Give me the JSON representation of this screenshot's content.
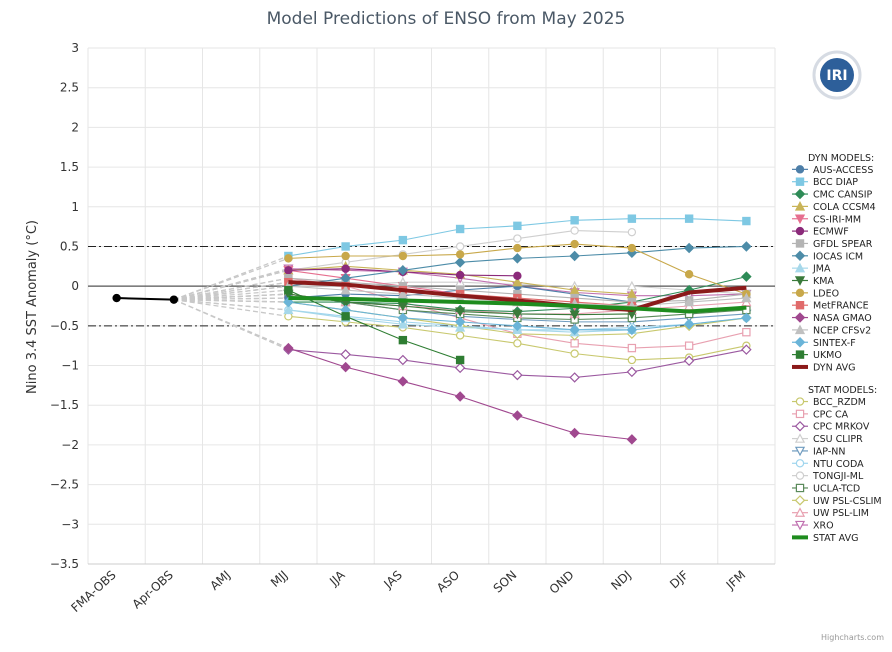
{
  "logo_text": "IRI",
  "credits": "Highcharts.com",
  "chart_data": {
    "type": "line",
    "title": "Model Predictions of ENSO from May 2025",
    "xlabel": "",
    "ylabel": "Nino 3.4 SST Anomaly (°C)",
    "ylim": [
      -3.5,
      3
    ],
    "yticks": [
      3,
      2.5,
      2,
      1.5,
      1,
      0.5,
      0,
      -0.5,
      -1,
      -1.5,
      -2,
      -2.5,
      -3,
      -3.5
    ],
    "ytick_labels": [
      "3",
      "2.5",
      "2",
      "1.5",
      "1",
      "0.5",
      "0",
      "−0.5",
      "−1",
      "−1.5",
      "−2",
      "−2.5",
      "−3",
      "−3.5"
    ],
    "categories": [
      "FMA-OBS",
      "Apr-OBS",
      "AMJ",
      "MJJ",
      "JJA",
      "JAS",
      "ASO",
      "SON",
      "OND",
      "NDJ",
      "DJF",
      "JFM"
    ],
    "reference_lines": [
      0.5,
      -0.5
    ],
    "observed": {
      "name": "OBS",
      "color": "#000000",
      "values": [
        -0.15,
        -0.17
      ]
    },
    "dyn_header": "DYN MODELS:",
    "stat_header": "STAT MODELS:",
    "dyn_series": [
      {
        "name": "AUS-ACCESS",
        "color": "#4d7ea8",
        "marker": "circle",
        "filled": true,
        "values": [
          null,
          null,
          null,
          -0.15,
          -0.1,
          -0.12,
          -0.05,
          0.0,
          -0.1,
          -0.2,
          null,
          null
        ]
      },
      {
        "name": "BCC DIAP",
        "color": "#7ec8e3",
        "marker": "square",
        "filled": true,
        "values": [
          null,
          null,
          null,
          0.38,
          0.5,
          0.58,
          0.72,
          0.76,
          0.83,
          0.85,
          0.85,
          0.82
        ]
      },
      {
        "name": "CMC CANSIP",
        "color": "#2e8b57",
        "marker": "diamond",
        "filled": true,
        "values": [
          null,
          null,
          null,
          -0.2,
          -0.2,
          -0.22,
          -0.3,
          -0.32,
          -0.28,
          -0.2,
          -0.05,
          0.12
        ]
      },
      {
        "name": "COLA CCSM4",
        "color": "#c9b458",
        "marker": "triangle",
        "filled": true,
        "values": [
          null,
          null,
          null,
          0.2,
          0.25,
          0.2,
          0.15,
          0.05,
          -0.05,
          -0.1,
          null,
          null
        ]
      },
      {
        "name": "CS-IRI-MM",
        "color": "#e66f8f",
        "marker": "triangle-down",
        "filled": true,
        "values": [
          null,
          null,
          null,
          0.2,
          0.1,
          0.0,
          -0.1,
          -0.2,
          -0.25,
          -0.28,
          null,
          null
        ]
      },
      {
        "name": "ECMWF",
        "color": "#8b2a7a",
        "marker": "circle",
        "filled": true,
        "values": [
          null,
          null,
          null,
          0.2,
          0.22,
          0.18,
          0.14,
          0.13,
          null,
          null,
          null,
          null
        ]
      },
      {
        "name": "GFDL SPEAR",
        "color": "#b4b4b4",
        "marker": "square",
        "filled": true,
        "values": [
          null,
          null,
          null,
          0.1,
          0.05,
          0.0,
          -0.05,
          -0.1,
          -0.15,
          -0.2,
          -0.18,
          -0.1
        ]
      },
      {
        "name": "IOCAS ICM",
        "color": "#4d8ca8",
        "marker": "diamond",
        "filled": true,
        "values": [
          null,
          null,
          null,
          0.0,
          0.1,
          0.2,
          0.3,
          0.35,
          0.38,
          0.42,
          0.48,
          0.5
        ]
      },
      {
        "name": "JMA",
        "color": "#a6d8ea",
        "marker": "triangle",
        "filled": true,
        "values": [
          null,
          null,
          null,
          -0.3,
          -0.4,
          -0.48,
          -0.52,
          -0.55,
          -0.58,
          -0.55,
          null,
          null
        ]
      },
      {
        "name": "KMA",
        "color": "#3a7a3a",
        "marker": "triangle-down",
        "filled": true,
        "values": [
          null,
          null,
          null,
          -0.1,
          -0.2,
          -0.25,
          -0.32,
          -0.35,
          -0.36,
          -0.35,
          null,
          null
        ]
      },
      {
        "name": "LDEO",
        "color": "#c8a84a",
        "marker": "circle",
        "filled": true,
        "values": [
          null,
          null,
          null,
          0.35,
          0.38,
          0.38,
          0.4,
          0.48,
          0.53,
          0.48,
          0.15,
          -0.1
        ]
      },
      {
        "name": "MetFRANCE",
        "color": "#e06a6a",
        "marker": "square",
        "filled": true,
        "values": [
          null,
          null,
          null,
          0.05,
          0.0,
          -0.05,
          -0.1,
          -0.15,
          -0.2,
          -0.25,
          null,
          null
        ]
      },
      {
        "name": "NASA GMAO",
        "color": "#a0488f",
        "marker": "diamond",
        "filled": true,
        "values": [
          null,
          null,
          null,
          -0.78,
          -1.02,
          -1.2,
          -1.39,
          -1.63,
          -1.85,
          -1.93,
          null,
          null
        ]
      },
      {
        "name": "NCEP CFSv2",
        "color": "#c0c0c0",
        "marker": "triangle",
        "filled": true,
        "values": [
          null,
          null,
          null,
          0.0,
          -0.05,
          -0.1,
          -0.15,
          -0.2,
          -0.22,
          -0.25,
          -0.2,
          -0.15
        ]
      },
      {
        "name": "SINTEX-F",
        "color": "#6ab4d8",
        "marker": "diamond",
        "filled": true,
        "values": [
          null,
          null,
          null,
          -0.2,
          -0.3,
          -0.4,
          -0.45,
          -0.5,
          -0.55,
          -0.55,
          -0.48,
          -0.4
        ]
      },
      {
        "name": "UKMO",
        "color": "#2e7d32",
        "marker": "square",
        "filled": true,
        "values": [
          null,
          null,
          null,
          -0.05,
          -0.38,
          -0.68,
          -0.93,
          null,
          null,
          null,
          null,
          null
        ]
      }
    ],
    "dyn_avg": {
      "name": "DYN AVG",
      "color": "#8b1a1a",
      "values": [
        null,
        null,
        null,
        0.05,
        0.02,
        -0.05,
        -0.12,
        -0.18,
        -0.25,
        -0.3,
        -0.08,
        -0.02
      ]
    },
    "stat_series": [
      {
        "name": "BCC_RZDM",
        "color": "#c8c86e",
        "marker": "circle",
        "filled": false,
        "values": [
          null,
          null,
          null,
          -0.38,
          -0.45,
          -0.52,
          -0.62,
          -0.72,
          -0.85,
          -0.93,
          -0.9,
          -0.75
        ]
      },
      {
        "name": "CPC CA",
        "color": "#e8a0b0",
        "marker": "square",
        "filled": false,
        "values": [
          null,
          null,
          null,
          0.1,
          0.0,
          -0.2,
          -0.4,
          -0.6,
          -0.72,
          -0.78,
          -0.75,
          -0.58
        ]
      },
      {
        "name": "CPC MRKOV",
        "color": "#9b59a0",
        "marker": "diamond",
        "filled": false,
        "values": [
          null,
          null,
          null,
          -0.8,
          -0.86,
          -0.93,
          -1.03,
          -1.12,
          -1.15,
          -1.08,
          -0.94,
          -0.8
        ]
      },
      {
        "name": "CSU CLIPR",
        "color": "#cfcfcf",
        "marker": "triangle",
        "filled": false,
        "values": [
          null,
          null,
          null,
          0.0,
          0.0,
          0.05,
          0.05,
          0.02,
          0.0,
          0.0,
          -0.05,
          -0.1
        ]
      },
      {
        "name": "IAP-NN",
        "color": "#6f9bbf",
        "marker": "triangle-down",
        "filled": false,
        "values": [
          null,
          null,
          null,
          -0.1,
          -0.2,
          -0.3,
          -0.38,
          -0.42,
          -0.45,
          -0.45,
          -0.4,
          -0.35
        ]
      },
      {
        "name": "NTU CODA",
        "color": "#9fd5ee",
        "marker": "circle",
        "filled": false,
        "values": [
          null,
          null,
          null,
          -0.3,
          -0.38,
          -0.45,
          -0.5,
          -0.55,
          -0.55,
          -0.52,
          -0.48,
          -0.4
        ]
      },
      {
        "name": "TONGJI-ML",
        "color": "#cfcfcf",
        "marker": "circle",
        "filled": false,
        "values": [
          null,
          null,
          null,
          0.2,
          0.3,
          0.4,
          0.5,
          0.6,
          0.7,
          0.68,
          null,
          null
        ]
      },
      {
        "name": "UCLA-TCD",
        "color": "#5a8a5a",
        "marker": "square",
        "filled": false,
        "values": [
          null,
          null,
          null,
          -0.1,
          -0.2,
          -0.3,
          -0.35,
          -0.4,
          -0.42,
          -0.4,
          -0.35,
          -0.3
        ]
      },
      {
        "name": "UW PSL-CSLIM",
        "color": "#c8c86e",
        "marker": "diamond",
        "filled": false,
        "values": [
          null,
          null,
          null,
          -0.2,
          -0.3,
          -0.4,
          -0.5,
          -0.6,
          -0.62,
          -0.6,
          -0.5,
          -0.4
        ]
      },
      {
        "name": "UW PSL-LIM",
        "color": "#e8a0b0",
        "marker": "triangle",
        "filled": false,
        "values": [
          null,
          null,
          null,
          -0.1,
          -0.2,
          -0.25,
          -0.3,
          -0.35,
          -0.35,
          -0.3,
          -0.25,
          -0.2
        ]
      },
      {
        "name": "XRO",
        "color": "#c070b0",
        "marker": "triangle-down",
        "filled": false,
        "values": [
          null,
          null,
          null,
          0.22,
          0.2,
          0.18,
          0.1,
          0.0,
          -0.08,
          -0.12,
          -0.12,
          -0.1
        ]
      }
    ],
    "stat_avg": {
      "name": "STAT AVG",
      "color": "#1e8c1e",
      "values": [
        null,
        null,
        null,
        -0.15,
        -0.16,
        -0.18,
        -0.2,
        -0.22,
        -0.25,
        -0.28,
        -0.32,
        -0.27
      ]
    },
    "legend_position": "right"
  }
}
